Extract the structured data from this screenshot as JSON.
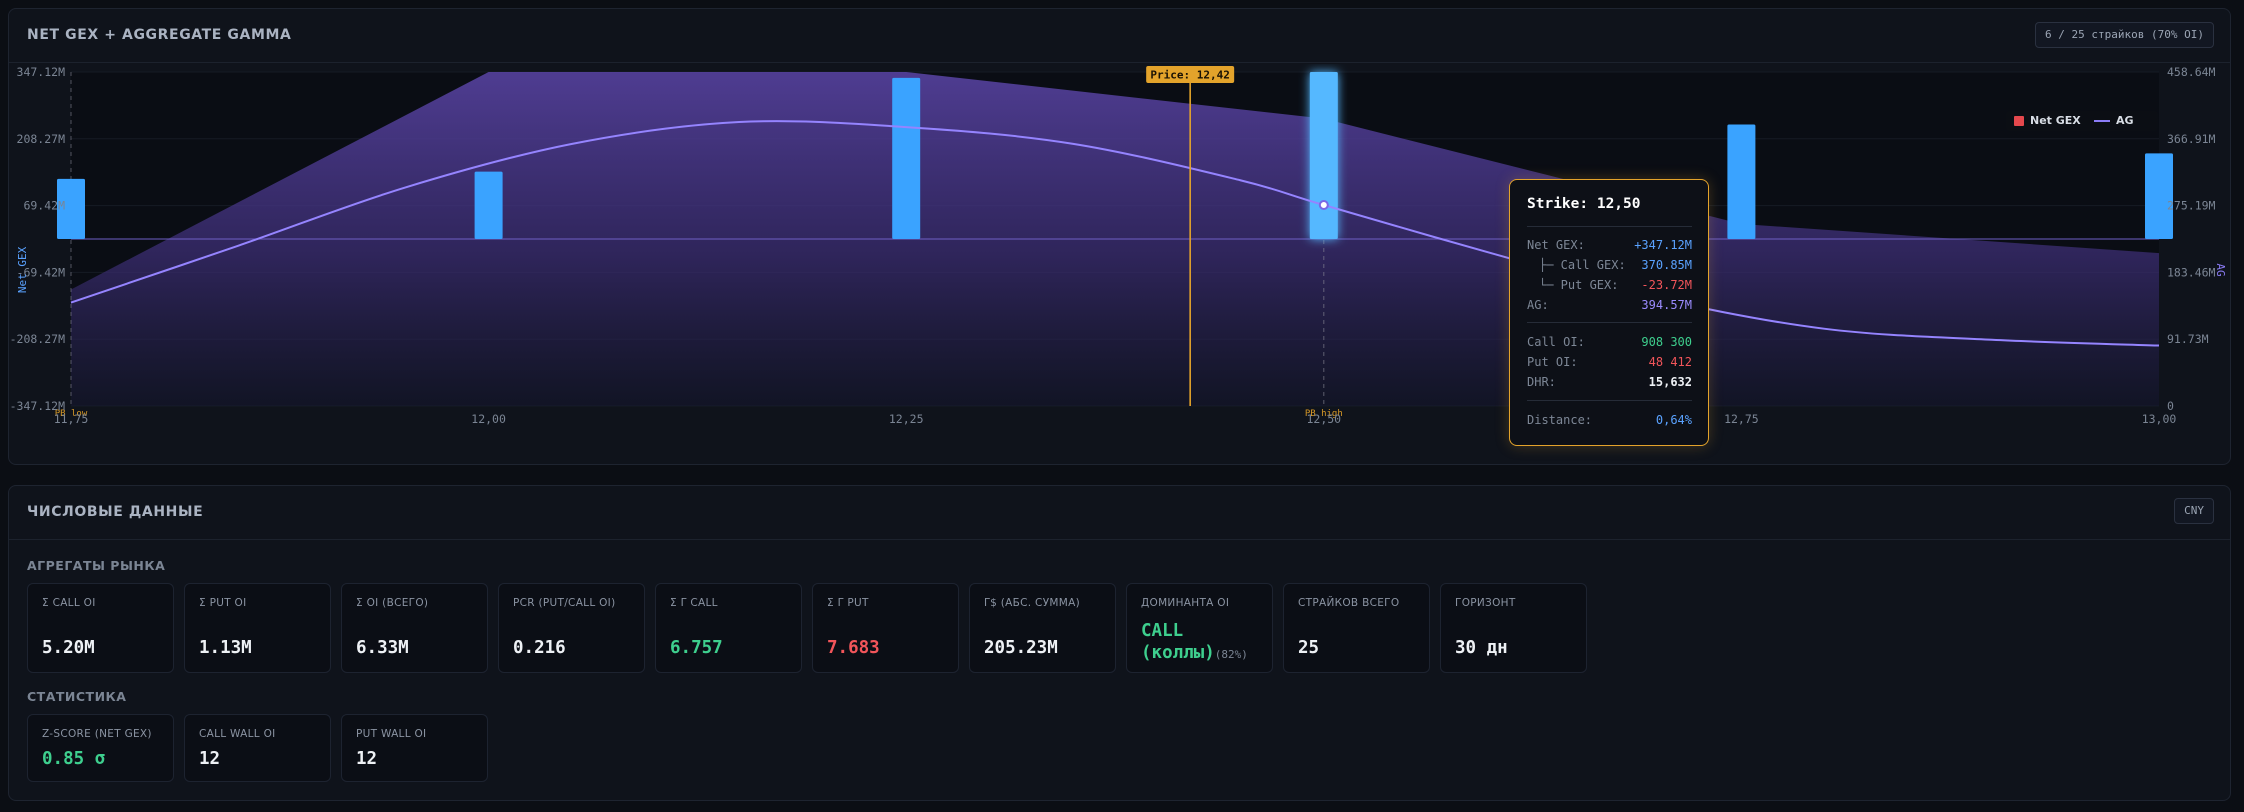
{
  "chart_panel": {
    "title": "NET GEX + AGGREGATE GAMMA",
    "badge": "6 / 25 страйков (70% OI)",
    "price_label": "Price: 12,42",
    "legend": {
      "net_gex": "Net GEX",
      "ag": "AG"
    },
    "annotations": {
      "pb_low": "PB low",
      "pb_high": "PB high"
    }
  },
  "chart_data": {
    "type": "bar",
    "x_ticks": [
      "11,75",
      "12,00",
      "12,25",
      "12,50",
      "12,75",
      "13,00"
    ],
    "y_left_label": "Net GEX",
    "y_left_ticks": [
      "347.12M",
      "208.27M",
      "69.42M",
      "-69.42M",
      "-208.27M",
      "-347.12M"
    ],
    "y_left_range": [
      -347.12,
      347.12
    ],
    "y_right_label": "AG",
    "y_right_ticks": [
      "458.64M",
      "366.91M",
      "275.19M",
      "183.46M",
      "91.73M",
      "0"
    ],
    "y_right_range": [
      0,
      458.64
    ],
    "price": 12.42,
    "pb_low": 11.75,
    "pb_high": 12.5,
    "net_gex_series": {
      "name": "Net GEX",
      "x": [
        11.75,
        12.0,
        12.25,
        12.5,
        12.75,
        13.0
      ],
      "values": [
        125,
        140,
        335,
        347.12,
        238,
        178
      ]
    },
    "ag_series": {
      "name": "AG",
      "x": [
        11.75,
        11.85,
        11.95,
        12.05,
        12.15,
        12.25,
        12.35,
        12.45,
        12.5,
        12.6,
        12.7,
        12.8,
        12.9,
        13.0
      ],
      "values": [
        142,
        220,
        300,
        360,
        390,
        383,
        360,
        310,
        276,
        210,
        148,
        106,
        91,
        83
      ]
    },
    "ag_envelope": {
      "x": [
        11.75,
        12.0,
        12.25,
        12.5,
        12.75,
        13.0
      ],
      "values": [
        160,
        458.64,
        458.64,
        394.57,
        250,
        210
      ]
    }
  },
  "tooltip": {
    "title": "Strike: 12,50",
    "rows": [
      {
        "k": "Net GEX:",
        "v": "+347.12M",
        "color": "#5aa2ff"
      },
      {
        "k": "├─ Call GEX:",
        "v": "370.85M",
        "color": "#5aa2ff"
      },
      {
        "k": "└─ Put GEX:",
        "v": "-23.72M",
        "color": "#f2555a"
      },
      {
        "k": "AG:",
        "v": "394.57M",
        "color": "#9b8cff"
      },
      {
        "k": "Call OI:",
        "v": "908 300",
        "color": "#3ecf8e"
      },
      {
        "k": "Put OI:",
        "v": "48 412",
        "color": "#f2555a"
      },
      {
        "k": "DHR:",
        "v": "15,632",
        "color": "#eef1f5"
      },
      {
        "k": "Distance:",
        "v": "0,64%",
        "color": "#5aa2ff"
      }
    ]
  },
  "data_panel": {
    "title": "ЧИСЛОВЫЕ ДАННЫЕ",
    "currency": "CNY",
    "market_section": "АГРЕГАТЫ РЫНКА",
    "market_cards": [
      {
        "label": "Σ CALL OI",
        "value": "5.20M",
        "tone": ""
      },
      {
        "label": "Σ PUT OI",
        "value": "1.13M",
        "tone": ""
      },
      {
        "label": "Σ OI (ВСЕГО)",
        "value": "6.33M",
        "tone": ""
      },
      {
        "label": "PCR (PUT/CALL OI)",
        "value": "0.216",
        "tone": ""
      },
      {
        "label": "Σ Γ CALL",
        "value": "6.757",
        "tone": "green"
      },
      {
        "label": "Σ Γ PUT",
        "value": "7.683",
        "tone": "red"
      },
      {
        "label": "Γ$ (АБС. СУММА)",
        "value": "205.23M",
        "tone": ""
      },
      {
        "label": "ДОМИНАНТА OI",
        "value": "",
        "tone": ""
      },
      {
        "label": "СТРАЙКОВ ВСЕГО",
        "value": "25",
        "tone": ""
      },
      {
        "label": "ГОРИЗОНТ",
        "value": "30 дн",
        "tone": ""
      }
    ],
    "dominant": {
      "line1": "CALL",
      "line2": "(коллы)",
      "pct": "(82%)"
    },
    "stats_section": "СТАТИСТИКА",
    "stats_cards": [
      {
        "label": "Z-SCORE (NET GEX)",
        "value": "0.85 σ",
        "tone": "green"
      },
      {
        "label": "CALL WALL OI",
        "value": "12",
        "tone": ""
      },
      {
        "label": "PUT WALL OI",
        "value": "12",
        "tone": ""
      }
    ]
  }
}
